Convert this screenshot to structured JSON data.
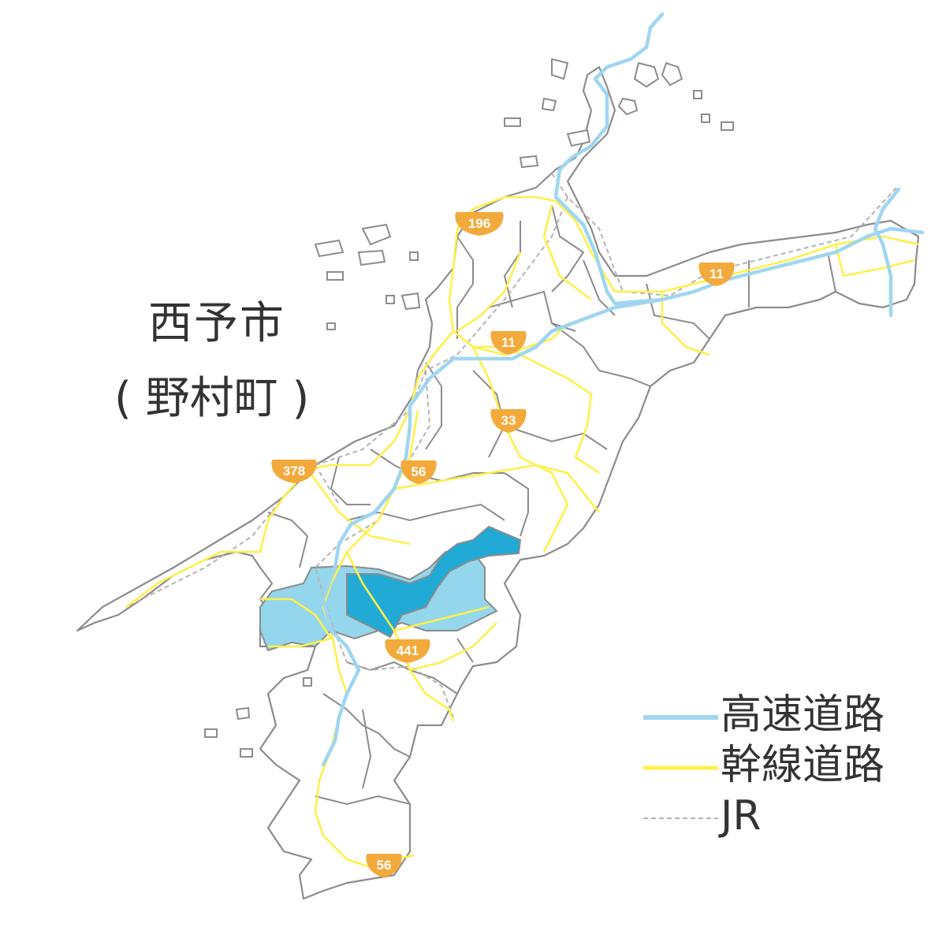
{
  "title": {
    "city": "西予市",
    "town": "( 野村町 )"
  },
  "legend": [
    {
      "label": "高速道路",
      "style": "solid",
      "color": "#9fd6ef"
    },
    {
      "label": "幹線道路",
      "style": "solid",
      "color": "#fff04a"
    },
    {
      "label": "JR",
      "style": "dashed",
      "color": "#b3b3b3"
    }
  ],
  "route_markers": [
    {
      "number": "196"
    },
    {
      "number": "11"
    },
    {
      "number": "11"
    },
    {
      "number": "33"
    },
    {
      "number": "378"
    },
    {
      "number": "56"
    },
    {
      "number": "441"
    },
    {
      "number": "56"
    }
  ],
  "colors": {
    "highlight_town": "#21aad6",
    "highlight_city": "#94d6ec",
    "expressway": "#9fd6ef",
    "trunk_road": "#fff04a",
    "railway": "#b3b3b3",
    "boundary": "#8c8c8c",
    "route_marker": "#f3aa3c"
  }
}
